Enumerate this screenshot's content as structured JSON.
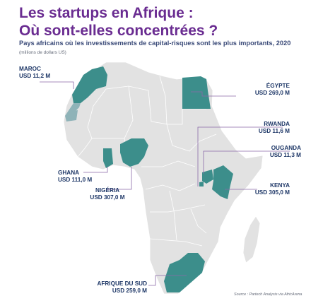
{
  "title": {
    "line1": "Les startups en Afrique :",
    "line2": "Où sont-elles concentrées ?"
  },
  "subtitle": "Pays africains où les investissements de capital-risques sont les plus importants, 2020",
  "unit_note": "(millions de dollars US)",
  "source": {
    "prefix": "Source :",
    "text": "Partech Analysis via AfricArena"
  },
  "colors": {
    "highlight": "#3c8e8b",
    "western_sahara": "#8fb3b8",
    "land": "#e2e2e2",
    "border": "#ffffff",
    "leader": "#8a6aa8",
    "label_text": "#1e3767",
    "title": "#6a2c91"
  },
  "countries": [
    {
      "id": "maroc",
      "name": "MAROC",
      "value": "USD 11,2 M"
    },
    {
      "id": "egypte",
      "name": "ÉGYPTE",
      "value": "USD 269,0 M"
    },
    {
      "id": "rwanda",
      "name": "RWANDA",
      "value": "USD 11,6 M"
    },
    {
      "id": "ouganda",
      "name": "OUGANDA",
      "value": "USD 11,3 M"
    },
    {
      "id": "kenya",
      "name": "KENYA",
      "value": "USD 305,0 M"
    },
    {
      "id": "ghana",
      "name": "GHANA",
      "value": "USD 111,0 M"
    },
    {
      "id": "nigeria",
      "name": "NIGÉRIA",
      "value": "USD 307,0 M"
    },
    {
      "id": "afrique-du-sud",
      "name": "AFRIQUE DU SUD",
      "value": "USD 259,0 M"
    }
  ]
}
